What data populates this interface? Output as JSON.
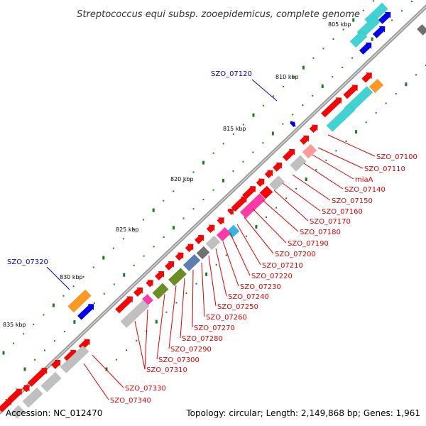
{
  "title": "Streptococcus equi subsp. zooepidemicus, complete genome",
  "footer": {
    "accession": "Accession: NC_012470",
    "summary": "Topology: circular; Length: 2,149,868 bp; Genes: 1,961"
  },
  "colors": {
    "gene_red": "#ff0000",
    "gene_gray": "#c0c0c0",
    "gene_cyan": "#3fd3d3",
    "gene_blue": "#0000ee",
    "gene_orange": "#ff9922",
    "gene_pink": "#ff3aa8",
    "gene_olive": "#6b8e23",
    "gene_steel": "#5a7fb0",
    "gene_salmon": "#ff9a9a",
    "gene_darkgray": "#707070",
    "gene_sky": "#33b6e6",
    "backbone": "#888888",
    "tick": "#1e7a1e",
    "label_red": "#e00000",
    "label_blue": "#0000cc"
  },
  "scale_labels": [
    "805 kbp",
    "810 kbp",
    "815 kbp",
    "820 kbp",
    "825 kbp",
    "830 kbp",
    "835 kbp"
  ],
  "gene_labels_blue": [
    "SZO_07120",
    "SZO_07320"
  ],
  "gene_labels_red": [
    "SZO_07100",
    "SZO_07110",
    "miaA",
    "SZO_07140",
    "SZO_07150",
    "SZO_07160",
    "SZO_07170",
    "SZO_07180",
    "SZO_07190",
    "SZO_07200",
    "SZO_07210",
    "SZO_07220",
    "SZO_07230",
    "SZO_07240",
    "SZO_07250",
    "SZO_07260",
    "SZO_07270",
    "SZO_07280",
    "SZO_07290",
    "SZO_07300",
    "SZO_07310",
    "SZO_07330",
    "SZO_07340"
  ]
}
